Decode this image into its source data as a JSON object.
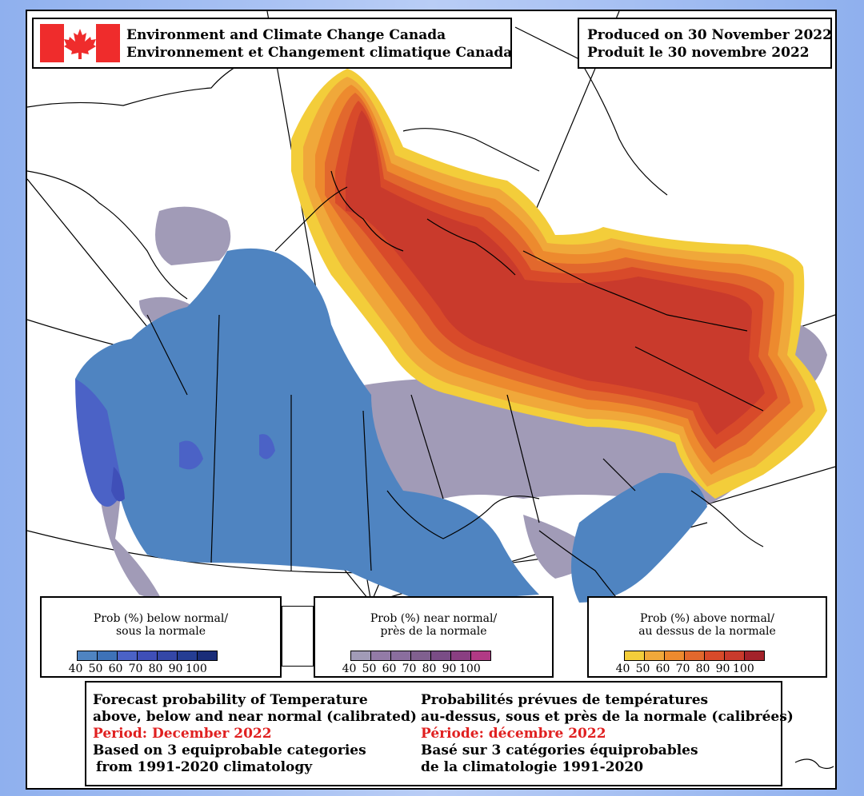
{
  "header": {
    "agency_en": "Environment and Climate Change Canada",
    "agency_fr": "Environnement et Changement climatique Canada",
    "produced_en": "Produced on 30 November 2022",
    "produced_fr": "Produit le 30 novembre 2022"
  },
  "colors": {
    "flag_red": "#ef2c2c",
    "below": [
      "#4f84c1",
      "#3e72b8",
      "#4b62c6",
      "#3f4fb8",
      "#3447a7",
      "#253d93",
      "#1a2d79"
    ],
    "near": [
      "#a19bb7",
      "#937ba7",
      "#8a6e9e",
      "#80608f",
      "#7a4d86",
      "#8a3f82",
      "#b13a85"
    ],
    "above": [
      "#f3cd3a",
      "#f0a83a",
      "#ed8a2e",
      "#e2682d",
      "#d84a2a",
      "#c93a2c",
      "#a3222a"
    ]
  },
  "legends": {
    "below": {
      "title_1": "Prob (%) below normal/",
      "title_2": "sous la normale",
      "ticks": [
        "40",
        "50",
        "60",
        "70",
        "80",
        "90",
        "100"
      ]
    },
    "near": {
      "title_1": "Prob (%) near normal/",
      "title_2": "près de la normale",
      "ticks": [
        "40",
        "50",
        "60",
        "70",
        "80",
        "90",
        "100"
      ]
    },
    "above": {
      "title_1": "Prob (%) above normal/",
      "title_2": "au dessus de la normale",
      "ticks": [
        "40",
        "50",
        "60",
        "70",
        "80",
        "90",
        "100"
      ]
    }
  },
  "info": {
    "en_1": "Forecast probability of Temperature",
    "en_2": "above, below and near normal (calibrated)",
    "en_period": "Period: December 2022",
    "en_3": "Based on 3 equiprobable categories",
    "en_4": "from 1991-2020 climatology",
    "fr_1": "Probabilités prévues de températures",
    "fr_2": "au-dessus, sous et près de la normale (calibrées)",
    "fr_period": "Période: décembre 2022",
    "fr_3": "Basé sur 3 catégories équiprobables",
    "fr_4": "de la climatologie 1991-2020"
  }
}
